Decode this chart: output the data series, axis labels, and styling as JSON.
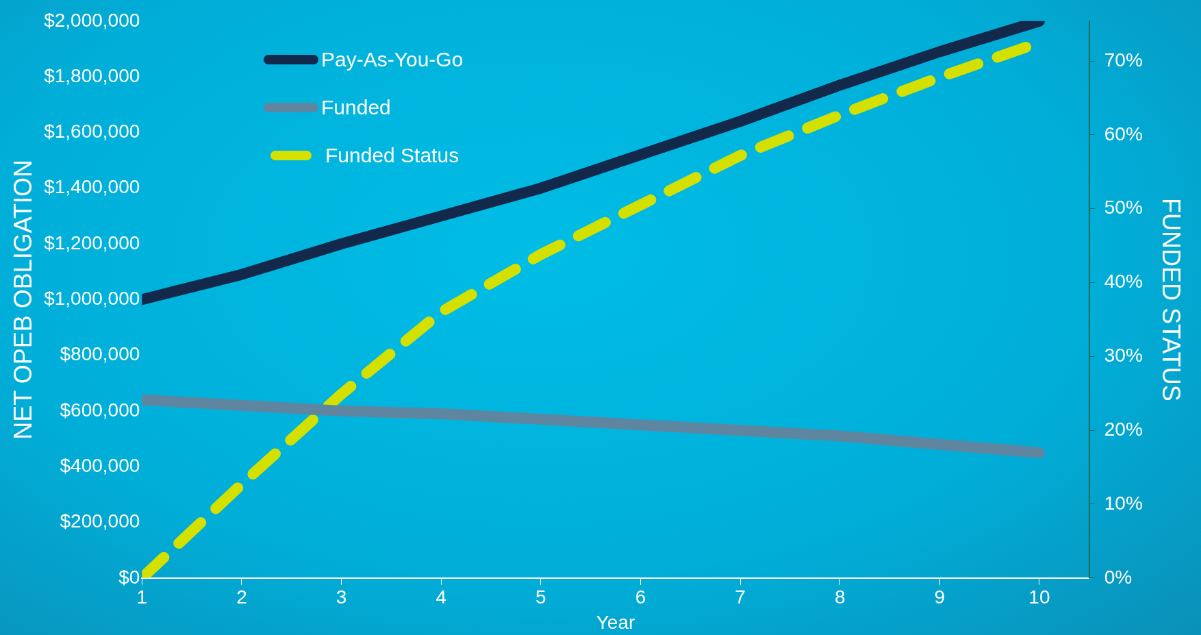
{
  "chart_data": {
    "type": "line",
    "xlabel": "Year",
    "ylabel": "NET OPEB OBLIGATION",
    "y2label": "FUNDED STATUS",
    "x": [
      1,
      2,
      3,
      4,
      5,
      6,
      7,
      8,
      9,
      10
    ],
    "series": [
      {
        "name": "Pay-As-You-Go",
        "color": "#13294b",
        "values": [
          1000000,
          1090000,
          1200000,
          1300000,
          1400000,
          1520000,
          1640000,
          1770000,
          1890000,
          2000000
        ]
      },
      {
        "name": "Funded",
        "color": "#5f86a0",
        "values": [
          640000,
          620000,
          600000,
          590000,
          570000,
          550000,
          530000,
          510000,
          480000,
          450000
        ]
      },
      {
        "name": "Funded Status",
        "color": "#d4e000",
        "axis": "y2",
        "line_style": "dashed",
        "values": [
          0,
          12.7,
          24.9,
          36,
          43.8,
          50.5,
          57.2,
          62.7,
          67.8,
          72.5
        ]
      }
    ],
    "xlim": [
      1,
      10.5
    ],
    "xticks": [
      1,
      2,
      3,
      4,
      5,
      6,
      7,
      8,
      9,
      10
    ],
    "ylim": [
      0,
      2000000
    ],
    "yticks": [
      {
        "value": 0,
        "label": "$0"
      },
      {
        "value": 200000,
        "label": "$200,000"
      },
      {
        "value": 400000,
        "label": "$400,000"
      },
      {
        "value": 600000,
        "label": "$600,000"
      },
      {
        "value": 800000,
        "label": "$800,000"
      },
      {
        "value": 1000000,
        "label": "$1,000,000"
      },
      {
        "value": 1200000,
        "label": "$1,200,000"
      },
      {
        "value": 1400000,
        "label": "$1,400,000"
      },
      {
        "value": 1600000,
        "label": "$1,600,000"
      },
      {
        "value": 1800000,
        "label": "$1,800,000"
      },
      {
        "value": 2000000,
        "label": "$2,000,000"
      }
    ],
    "y2lim": [
      0,
      75.4
    ],
    "y2ticks": [
      {
        "value": 0,
        "label": "0%"
      },
      {
        "value": 10,
        "label": "10%"
      },
      {
        "value": 20,
        "label": "20%"
      },
      {
        "value": 30,
        "label": "30%"
      },
      {
        "value": 40,
        "label": "40%"
      },
      {
        "value": 50,
        "label": "50%"
      },
      {
        "value": 60,
        "label": "60%"
      },
      {
        "value": 70,
        "label": "70%"
      }
    ],
    "grid": false,
    "legend": "top left",
    "marker": "none",
    "line_style": "solid"
  }
}
